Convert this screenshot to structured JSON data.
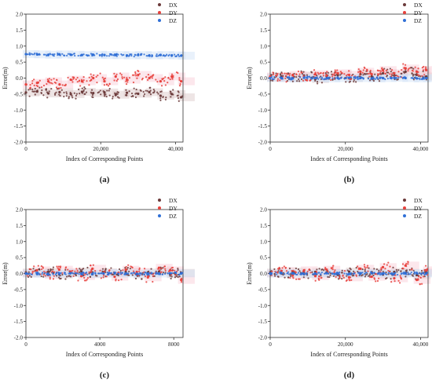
{
  "chart_data": [
    {
      "type": "scatter",
      "panel_label": "(a)",
      "xlabel": "Index of Corresponding Points",
      "ylabel": "Error(m)",
      "xlim": [
        0,
        42000
      ],
      "ylim": [
        -2.0,
        2.0
      ],
      "xticks": [
        0,
        20000,
        40000
      ],
      "xtick_labels": [
        "0",
        "20,000",
        "40,000"
      ],
      "yticks": [
        -2.0,
        -1.5,
        -1.0,
        -0.5,
        0.0,
        0.5,
        1.0,
        1.5,
        2.0
      ],
      "ytick_labels": [
        "-2.0",
        "-1.5",
        "-1.0",
        "-0.5",
        "0.0",
        "0.5",
        "1.0",
        "1.5",
        "2.0"
      ],
      "legend": "top-right",
      "series": [
        {
          "name": "DX",
          "color": "#6b3a3a",
          "x": [
            0,
            3000,
            6000,
            9000,
            12000,
            15000,
            18000,
            21000,
            24000,
            27000,
            30000,
            33000,
            36000,
            39000,
            41500
          ],
          "y": [
            -0.45,
            -0.42,
            -0.48,
            -0.44,
            -0.5,
            -0.43,
            -0.47,
            -0.45,
            -0.52,
            -0.46,
            -0.49,
            -0.44,
            -0.55,
            -0.5,
            -0.6
          ]
        },
        {
          "name": "DY",
          "color": "#e8413c",
          "x": [
            0,
            3000,
            6000,
            9000,
            12000,
            15000,
            18000,
            21000,
            24000,
            27000,
            30000,
            33000,
            36000,
            39000,
            41500
          ],
          "y": [
            -0.2,
            -0.15,
            -0.1,
            -0.2,
            -0.05,
            -0.1,
            0.0,
            -0.1,
            0.05,
            -0.05,
            0.1,
            0.0,
            -0.1,
            0.05,
            -0.1
          ]
        },
        {
          "name": "DZ",
          "color": "#2f6fd6",
          "x": [
            0,
            3000,
            6000,
            9000,
            12000,
            15000,
            18000,
            21000,
            24000,
            27000,
            30000,
            33000,
            36000,
            39000,
            41500
          ],
          "y": [
            0.75,
            0.74,
            0.73,
            0.74,
            0.73,
            0.72,
            0.73,
            0.72,
            0.72,
            0.71,
            0.72,
            0.71,
            0.72,
            0.71,
            0.7
          ]
        }
      ]
    },
    {
      "type": "scatter",
      "panel_label": "(b)",
      "xlabel": "Index of Corresponding Points",
      "ylabel": "Error(m)",
      "xlim": [
        0,
        42000
      ],
      "ylim": [
        -2.0,
        2.0
      ],
      "xticks": [
        0,
        20000,
        40000
      ],
      "xtick_labels": [
        "0",
        "20,000",
        "40,000"
      ],
      "yticks": [
        -2.0,
        -1.5,
        -1.0,
        -0.5,
        0.0,
        0.5,
        1.0,
        1.5,
        2.0
      ],
      "ytick_labels": [
        "-2.0",
        "-1.5",
        "-1.0",
        "-0.5",
        "0.0",
        "0.5",
        "1.0",
        "1.5",
        "2.0"
      ],
      "legend": "top-right",
      "series": [
        {
          "name": "DX",
          "color": "#6b3a3a",
          "x": [
            0,
            3000,
            6000,
            9000,
            12000,
            15000,
            18000,
            21000,
            24000,
            27000,
            30000,
            33000,
            36000,
            39000,
            41500
          ],
          "y": [
            0.02,
            0.05,
            0.0,
            0.08,
            -0.03,
            0.06,
            0.1,
            0.0,
            0.12,
            0.05,
            0.15,
            0.08,
            0.2,
            0.1,
            0.05
          ]
        },
        {
          "name": "DY",
          "color": "#e8413c",
          "x": [
            0,
            3000,
            6000,
            9000,
            12000,
            15000,
            18000,
            21000,
            24000,
            27000,
            30000,
            33000,
            36000,
            39000,
            41500
          ],
          "y": [
            0.05,
            0.0,
            0.1,
            0.05,
            0.12,
            0.08,
            0.15,
            0.1,
            0.2,
            0.12,
            0.25,
            0.15,
            0.3,
            0.2,
            0.25
          ]
        },
        {
          "name": "DZ",
          "color": "#2f6fd6",
          "x": [
            0,
            3000,
            6000,
            9000,
            12000,
            15000,
            18000,
            21000,
            24000,
            27000,
            30000,
            33000,
            36000,
            39000,
            41500
          ],
          "y": [
            0.0,
            0.0,
            -0.01,
            0.01,
            0.0,
            -0.01,
            0.0,
            0.01,
            0.0,
            -0.01,
            0.0,
            0.01,
            0.0,
            -0.01,
            0.0
          ]
        }
      ]
    },
    {
      "type": "scatter",
      "panel_label": "(c)",
      "xlabel": "Index of Corresponding Points",
      "ylabel": "Error(m)",
      "xlim": [
        0,
        8500
      ],
      "ylim": [
        -2.0,
        2.0
      ],
      "xticks": [
        0,
        4000,
        8000
      ],
      "xtick_labels": [
        "0",
        "4000",
        "8000"
      ],
      "yticks": [
        -2.0,
        -1.5,
        -1.0,
        -0.5,
        0.0,
        0.5,
        1.0,
        1.5,
        2.0
      ],
      "ytick_labels": [
        "-2.0",
        "-1.5",
        "-1.0",
        "-0.5",
        "0.0",
        "0.5",
        "1.0",
        "1.5",
        "2.0"
      ],
      "legend": "top-right",
      "series": [
        {
          "name": "DX",
          "color": "#6b3a3a",
          "x": [
            0,
            600,
            1200,
            1800,
            2400,
            3000,
            3600,
            4200,
            4800,
            5400,
            6000,
            6600,
            7200,
            7800,
            8400
          ],
          "y": [
            0.03,
            0.0,
            0.05,
            -0.03,
            0.02,
            0.06,
            -0.02,
            0.04,
            0.0,
            0.05,
            -0.03,
            0.03,
            0.06,
            -0.02,
            0.02
          ]
        },
        {
          "name": "DY",
          "color": "#e8413c",
          "x": [
            0,
            600,
            1200,
            1800,
            2400,
            3000,
            3600,
            4200,
            4800,
            5400,
            6000,
            6600,
            7200,
            7800,
            8400
          ],
          "y": [
            0.0,
            0.1,
            -0.05,
            0.12,
            0.05,
            -0.08,
            0.15,
            0.0,
            -0.1,
            0.12,
            0.05,
            -0.12,
            0.18,
            0.1,
            -0.2
          ]
        },
        {
          "name": "DZ",
          "color": "#2f6fd6",
          "x": [
            0,
            600,
            1200,
            1800,
            2400,
            3000,
            3600,
            4200,
            4800,
            5400,
            6000,
            6600,
            7200,
            7800,
            8400
          ],
          "y": [
            0.0,
            0.0,
            -0.01,
            0.0,
            0.01,
            0.0,
            -0.01,
            0.0,
            0.01,
            0.0,
            -0.01,
            0.0,
            0.0,
            0.01,
            0.0
          ]
        }
      ]
    },
    {
      "type": "scatter",
      "panel_label": "(d)",
      "xlabel": "Index of Corresponding Points",
      "ylabel": "Error(m)",
      "xlim": [
        0,
        42000
      ],
      "ylim": [
        -2.0,
        2.0
      ],
      "xticks": [
        0,
        20000,
        40000
      ],
      "xtick_labels": [
        "0",
        "20,000",
        "40,000"
      ],
      "yticks": [
        -2.0,
        -1.5,
        -1.0,
        -0.5,
        0.0,
        0.5,
        1.0,
        1.5,
        2.0
      ],
      "ytick_labels": [
        "-2.0",
        "-1.5",
        "-1.0",
        "-0.5",
        "0.0",
        "0.5",
        "1.0",
        "1.5",
        "2.0"
      ],
      "legend": "top-right",
      "series": [
        {
          "name": "DX",
          "color": "#6b3a3a",
          "x": [
            0,
            3000,
            6000,
            9000,
            12000,
            15000,
            18000,
            21000,
            24000,
            27000,
            30000,
            33000,
            36000,
            39000,
            41500
          ],
          "y": [
            0.03,
            0.0,
            0.06,
            -0.02,
            0.05,
            0.02,
            -0.04,
            0.06,
            0.0,
            0.04,
            -0.03,
            0.05,
            0.02,
            -0.05,
            0.03
          ]
        },
        {
          "name": "DY",
          "color": "#e8413c",
          "x": [
            0,
            3000,
            6000,
            9000,
            12000,
            15000,
            18000,
            21000,
            24000,
            27000,
            30000,
            33000,
            36000,
            39000,
            41500
          ],
          "y": [
            0.0,
            0.08,
            -0.05,
            0.1,
            -0.08,
            0.12,
            0.0,
            -0.12,
            0.15,
            -0.1,
            0.2,
            -0.15,
            0.25,
            -0.2,
            0.1
          ]
        },
        {
          "name": "DZ",
          "color": "#2f6fd6",
          "x": [
            0,
            3000,
            6000,
            9000,
            12000,
            15000,
            18000,
            21000,
            24000,
            27000,
            30000,
            33000,
            36000,
            39000,
            41500
          ],
          "y": [
            0.0,
            0.01,
            0.0,
            -0.01,
            0.0,
            0.01,
            0.0,
            -0.01,
            0.0,
            0.01,
            0.0,
            -0.01,
            0.0,
            0.01,
            0.0
          ]
        }
      ]
    }
  ]
}
